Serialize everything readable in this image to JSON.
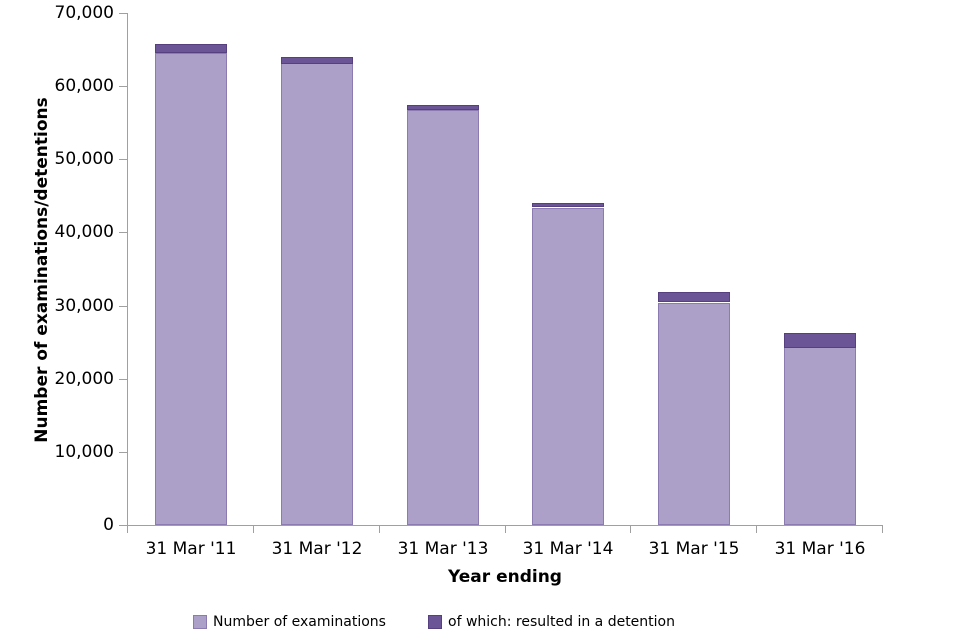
{
  "chart_data": {
    "type": "bar",
    "stacked": true,
    "title": "",
    "xlabel": "Year ending",
    "ylabel": "Number of examinations/detentions",
    "categories": [
      "31 Mar '11",
      "31 Mar '12",
      "31 Mar '13",
      "31 Mar '14",
      "31 Mar '15",
      "31 Mar '16"
    ],
    "series": [
      {
        "name": "Number of examinations",
        "color": "#ADA0C8",
        "border_color": "#8C7BB0",
        "values": [
          64500,
          63100,
          56700,
          43400,
          30400,
          24300
        ]
      },
      {
        "name": "of which: resulted in a detention",
        "color": "#6B5596",
        "border_color": "#564080",
        "values": [
          1200,
          900,
          700,
          600,
          1400,
          2000
        ]
      }
    ],
    "ylim": [
      0,
      70000
    ],
    "ytick_step": 10000,
    "ytick_labels": [
      "0",
      "10,000",
      "20,000",
      "30,000",
      "40,000",
      "50,000",
      "60,000",
      "70,000"
    ],
    "grid": false,
    "legend_position": "bottom",
    "axis_color": "#A0A0A0",
    "text_color": "#000000"
  }
}
